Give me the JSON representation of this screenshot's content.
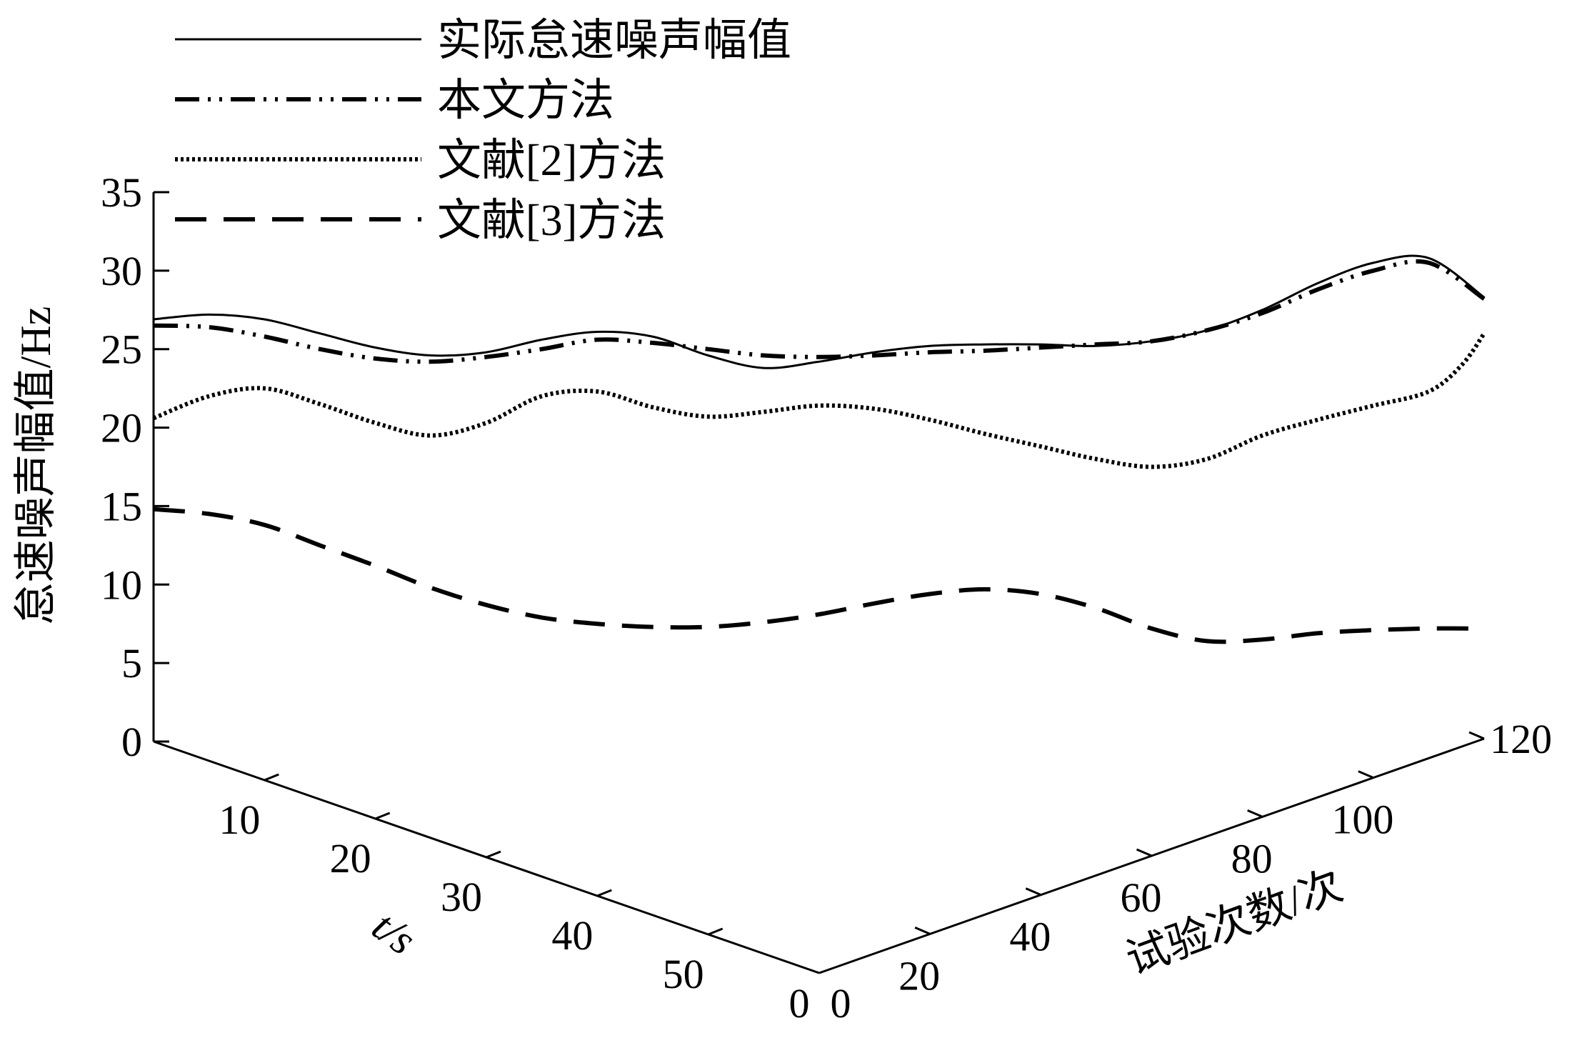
{
  "chart_data": {
    "type": "line",
    "projection": "3d",
    "yaxis": {
      "label": "怠速噪声幅值/Hz",
      "ticks": [
        0,
        5,
        10,
        15,
        20,
        25,
        30,
        35
      ],
      "range": [
        0,
        35
      ]
    },
    "taxis": {
      "label": "t/s",
      "ticks": [
        0,
        10,
        20,
        30,
        40,
        50
      ],
      "range": [
        0,
        60
      ]
    },
    "naxis": {
      "label": "试验次数/次",
      "ticks": [
        0,
        20,
        40,
        60,
        80,
        100,
        120
      ],
      "range": [
        0,
        120
      ]
    },
    "legend": {
      "position": "top-left"
    },
    "series": [
      {
        "name": "实际怠速噪声幅值",
        "style": "solid",
        "color": "#000000",
        "x": [
          0,
          5,
          10,
          15,
          20,
          25,
          30,
          35,
          40,
          45,
          50,
          55,
          60,
          65,
          70,
          75,
          80,
          85,
          90,
          95,
          100,
          105,
          110,
          115,
          120
        ],
        "y": [
          26.9,
          27.2,
          26.9,
          26.0,
          25.1,
          24.6,
          24.8,
          25.6,
          26.1,
          25.8,
          24.6,
          23.8,
          24.2,
          24.8,
          25.2,
          25.3,
          25.3,
          25.2,
          25.5,
          26.2,
          27.5,
          29.2,
          30.5,
          30.8,
          28.3
        ]
      },
      {
        "name": "本文方法",
        "style": "dash-dot-dot",
        "color": "#000000",
        "x": [
          0,
          5,
          10,
          15,
          20,
          25,
          30,
          35,
          40,
          45,
          50,
          55,
          60,
          65,
          70,
          75,
          80,
          85,
          90,
          95,
          100,
          105,
          110,
          115,
          120
        ],
        "y": [
          26.5,
          26.4,
          25.8,
          25.0,
          24.4,
          24.2,
          24.5,
          25.0,
          25.6,
          25.4,
          25.0,
          24.6,
          24.5,
          24.6,
          24.8,
          24.9,
          25.1,
          25.3,
          25.5,
          26.2,
          27.3,
          28.8,
          30.0,
          30.5,
          28.2
        ]
      },
      {
        "name": "文献[2]方法",
        "style": "dotted",
        "color": "#000000",
        "x": [
          0,
          5,
          10,
          15,
          20,
          25,
          30,
          35,
          40,
          45,
          50,
          55,
          60,
          65,
          70,
          75,
          80,
          85,
          90,
          95,
          100,
          105,
          110,
          115,
          118,
          120
        ],
        "y": [
          20.6,
          22.0,
          22.5,
          21.5,
          20.3,
          19.5,
          20.3,
          22.0,
          22.3,
          21.3,
          20.7,
          21.0,
          21.4,
          21.2,
          20.5,
          19.6,
          18.8,
          18.0,
          17.5,
          18.0,
          19.5,
          20.5,
          21.4,
          22.3,
          24.0,
          26.0
        ]
      },
      {
        "name": "文献[3]方法",
        "style": "dashed",
        "color": "#000000",
        "x": [
          0,
          5,
          10,
          15,
          20,
          25,
          30,
          35,
          40,
          45,
          50,
          55,
          60,
          65,
          70,
          75,
          80,
          85,
          90,
          95,
          100,
          105,
          110,
          115,
          120
        ],
        "y": [
          14.8,
          14.5,
          13.8,
          12.5,
          11.2,
          9.8,
          8.7,
          7.9,
          7.5,
          7.3,
          7.3,
          7.6,
          8.1,
          8.8,
          9.4,
          9.7,
          9.4,
          8.5,
          7.2,
          6.4,
          6.5,
          6.9,
          7.1,
          7.2,
          7.2
        ]
      }
    ]
  }
}
